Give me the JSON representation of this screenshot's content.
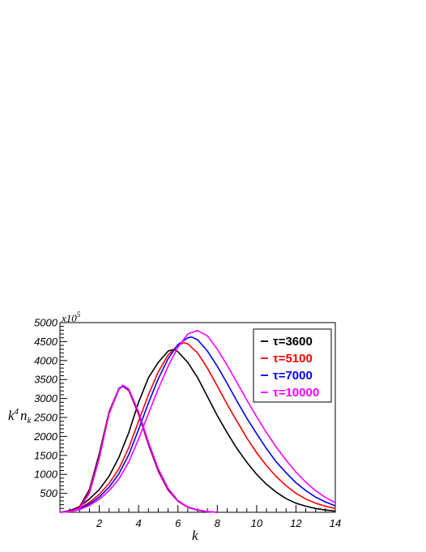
{
  "chart_data": {
    "type": "line",
    "title": "",
    "xlabel": "k",
    "ylabel_parts": {
      "base": "k",
      "sup": "4",
      "mid": "n",
      "sub": "k"
    },
    "y_multiplier": {
      "base": "x10",
      "exp": "5"
    },
    "xlim": [
      0,
      14
    ],
    "ylim": [
      0,
      5000
    ],
    "x_ticks": [
      2,
      4,
      6,
      8,
      10,
      12,
      14
    ],
    "x_tick_labels": [
      "2",
      "4",
      "6",
      "8",
      "10",
      "12",
      "14"
    ],
    "y_ticks": [
      500,
      1000,
      1500,
      2000,
      2500,
      3000,
      3500,
      4000,
      4500,
      5000
    ],
    "y_tick_labels": [
      "500",
      "1000",
      "1500",
      "2000",
      "2500",
      "3000",
      "3500",
      "4000",
      "4500",
      "5000"
    ],
    "grid": false,
    "legend_position": "top-right",
    "series": [
      {
        "name": "τ=3600",
        "color": "#000000",
        "low_peak": {
          "x": [
            0,
            0.5,
            1,
            1.5,
            2,
            2.5,
            3,
            3.2,
            3.5,
            4,
            4.5,
            5,
            5.5,
            6,
            6.5,
            7,
            7.5,
            8
          ],
          "y": [
            0,
            40,
            150,
            600,
            1550,
            2650,
            3270,
            3330,
            3220,
            2600,
            1800,
            1100,
            600,
            300,
            140,
            60,
            20,
            0
          ]
        },
        "high_peak": {
          "x": [
            0,
            0.5,
            1,
            1.5,
            2,
            2.5,
            3,
            3.5,
            4,
            4.5,
            5,
            5.5,
            5.8,
            6,
            6.5,
            7,
            7.5,
            8,
            8.5,
            9,
            9.5,
            10,
            10.5,
            11,
            11.5,
            12,
            12.5,
            13,
            13.5,
            14
          ],
          "y": [
            0,
            40,
            150,
            350,
            600,
            950,
            1450,
            2100,
            2900,
            3550,
            3950,
            4250,
            4300,
            4230,
            3950,
            3550,
            3050,
            2550,
            2100,
            1680,
            1320,
            1000,
            740,
            530,
            360,
            240,
            160,
            100,
            60,
            30
          ]
        }
      },
      {
        "name": "τ=5100",
        "color": "#ff0000",
        "low_peak": {
          "x": [
            0,
            0.5,
            1,
            1.5,
            2,
            2.5,
            3,
            3.2,
            3.5,
            4,
            4.5,
            5,
            5.5,
            6,
            6.5,
            7,
            7.5,
            8
          ],
          "y": [
            0,
            30,
            130,
            560,
            1500,
            2620,
            3250,
            3320,
            3210,
            2580,
            1780,
            1080,
            580,
            290,
            130,
            55,
            18,
            0
          ]
        },
        "high_peak": {
          "x": [
            0,
            0.5,
            1,
            1.5,
            2,
            2.5,
            3,
            3.5,
            4,
            4.5,
            5,
            5.5,
            6,
            6.3,
            6.5,
            7,
            7.5,
            8,
            8.5,
            9,
            9.5,
            10,
            10.5,
            11,
            11.5,
            12,
            12.5,
            13,
            13.5,
            14
          ],
          "y": [
            0,
            25,
            110,
            260,
            470,
            760,
            1150,
            1700,
            2400,
            3100,
            3700,
            4150,
            4400,
            4470,
            4440,
            4200,
            3800,
            3330,
            2850,
            2400,
            1960,
            1570,
            1230,
            940,
            700,
            500,
            350,
            240,
            160,
            100
          ]
        }
      },
      {
        "name": "τ=7000",
        "color": "#0000ff",
        "low_peak": {
          "x": [
            0,
            0.5,
            1,
            1.5,
            2,
            2.5,
            3,
            3.2,
            3.5,
            4,
            4.5,
            5,
            5.5,
            6,
            6.5,
            7,
            7.5,
            8
          ],
          "y": [
            0,
            25,
            110,
            520,
            1450,
            2600,
            3240,
            3330,
            3230,
            2620,
            1820,
            1120,
            610,
            300,
            135,
            55,
            18,
            0
          ]
        },
        "high_peak": {
          "x": [
            0,
            0.5,
            1,
            1.5,
            2,
            2.5,
            3,
            3.5,
            4,
            4.5,
            5,
            5.5,
            6,
            6.5,
            6.7,
            7,
            7.5,
            8,
            8.5,
            9,
            9.5,
            10,
            10.5,
            11,
            11.5,
            12,
            12.5,
            13,
            13.5,
            14
          ],
          "y": [
            0,
            20,
            90,
            220,
            400,
            660,
            1020,
            1520,
            2180,
            2880,
            3520,
            4050,
            4420,
            4600,
            4620,
            4550,
            4250,
            3850,
            3400,
            2930,
            2480,
            2070,
            1680,
            1330,
            1040,
            780,
            570,
            400,
            270,
            170
          ]
        }
      },
      {
        "name": "τ=10000",
        "color": "#ff00ff",
        "low_peak": {
          "x": [
            0,
            0.5,
            1,
            1.5,
            2,
            2.5,
            3,
            3.2,
            3.5,
            4,
            4.5,
            5,
            5.5,
            6,
            6.5,
            7,
            7.5,
            8
          ],
          "y": [
            0,
            20,
            100,
            500,
            1420,
            2600,
            3250,
            3350,
            3250,
            2650,
            1850,
            1150,
            630,
            310,
            140,
            58,
            20,
            0
          ]
        },
        "high_peak": {
          "x": [
            0,
            0.5,
            1,
            1.5,
            2,
            2.5,
            3,
            3.5,
            4,
            4.5,
            5,
            5.5,
            6,
            6.5,
            7,
            7.5,
            8,
            8.5,
            9,
            9.5,
            10,
            10.5,
            11,
            11.5,
            12,
            12.5,
            13,
            13.5,
            14
          ],
          "y": [
            0,
            15,
            70,
            180,
            340,
            570,
            880,
            1330,
            1930,
            2600,
            3250,
            3850,
            4350,
            4700,
            4790,
            4650,
            4300,
            3880,
            3420,
            2960,
            2520,
            2100,
            1720,
            1370,
            1060,
            790,
            570,
            390,
            250
          ]
        }
      }
    ]
  }
}
